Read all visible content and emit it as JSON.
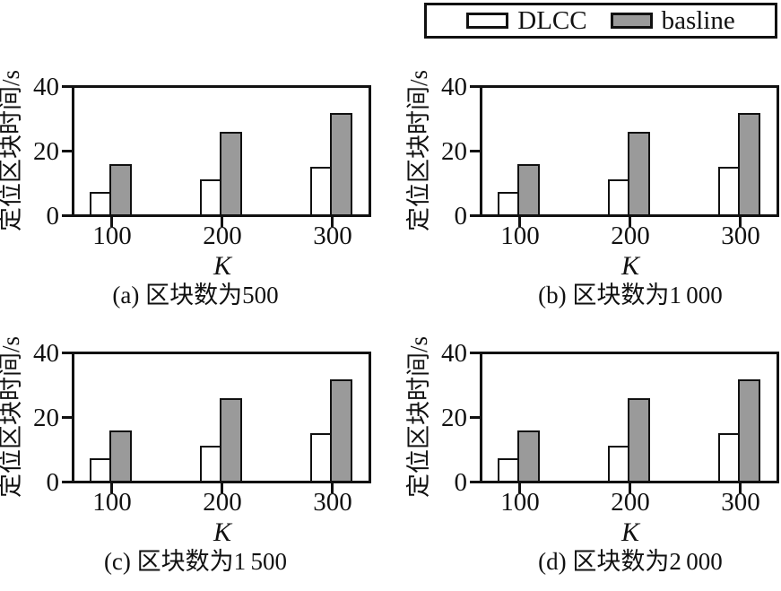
{
  "colors": {
    "line": "#111111",
    "background": "#ffffff",
    "dlcc_fill": "#ffffff",
    "baseline_fill": "#9a9a9a"
  },
  "legend": {
    "position": "figure-top-right",
    "entries": [
      {
        "label": "DLCC",
        "fill": "#ffffff"
      },
      {
        "label": "basline",
        "fill": "#9a9a9a"
      }
    ]
  },
  "chart_data": [
    {
      "id": "a",
      "type": "bar",
      "caption": "(a) 区块数为500",
      "xlabel": "K",
      "ylabel": "定位区块时间/s",
      "categories": [
        "100",
        "200",
        "300"
      ],
      "yticks": [
        "40",
        "20",
        "0"
      ],
      "ylim": [
        0,
        40
      ],
      "grid": false,
      "series": [
        {
          "name": "DLCC",
          "values": [
            7,
            11,
            15
          ],
          "fill": "#ffffff"
        },
        {
          "name": "basline",
          "values": [
            16,
            26,
            32
          ],
          "fill": "#9a9a9a"
        }
      ]
    },
    {
      "id": "b",
      "type": "bar",
      "caption": "(b) 区块数为1 000",
      "xlabel": "K",
      "ylabel": "定位区块时间/s",
      "categories": [
        "100",
        "200",
        "300"
      ],
      "yticks": [
        "40",
        "20",
        "0"
      ],
      "ylim": [
        0,
        40
      ],
      "grid": false,
      "series": [
        {
          "name": "DLCC",
          "values": [
            7,
            11,
            15
          ],
          "fill": "#ffffff"
        },
        {
          "name": "basline",
          "values": [
            16,
            26,
            32
          ],
          "fill": "#9a9a9a"
        }
      ]
    },
    {
      "id": "c",
      "type": "bar",
      "caption": "(c) 区块数为1 500",
      "xlabel": "K",
      "ylabel": "定位区块时间/s",
      "categories": [
        "100",
        "200",
        "300"
      ],
      "yticks": [
        "40",
        "20",
        "0"
      ],
      "ylim": [
        0,
        40
      ],
      "grid": false,
      "series": [
        {
          "name": "DLCC",
          "values": [
            7,
            11,
            15
          ],
          "fill": "#ffffff"
        },
        {
          "name": "basline",
          "values": [
            16,
            26,
            32
          ],
          "fill": "#9a9a9a"
        }
      ]
    },
    {
      "id": "d",
      "type": "bar",
      "caption": "(d) 区块数为2 000",
      "xlabel": "K",
      "ylabel": "定位区块时间/s",
      "categories": [
        "100",
        "200",
        "300"
      ],
      "yticks": [
        "40",
        "20",
        "0"
      ],
      "ylim": [
        0,
        40
      ],
      "grid": false,
      "series": [
        {
          "name": "DLCC",
          "values": [
            7,
            11,
            15
          ],
          "fill": "#ffffff"
        },
        {
          "name": "basline",
          "values": [
            16,
            26,
            32
          ],
          "fill": "#9a9a9a"
        }
      ]
    }
  ]
}
